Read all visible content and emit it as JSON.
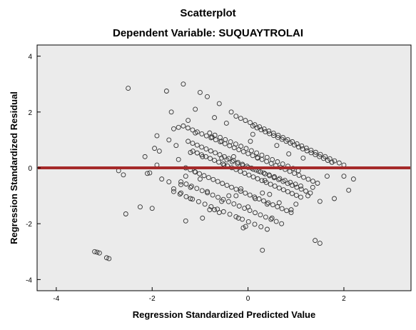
{
  "chart_data": {
    "type": "scatter",
    "title": "Scatterplot",
    "subtitle": "Dependent Variable: SUQUAYTROLAI",
    "xlabel": "Regression Standardized Predicted Value",
    "ylabel": "Regression Standardized Residual",
    "xlim": [
      -4.4,
      3.4
    ],
    "ylim": [
      -4.4,
      4.4
    ],
    "x_ticks": [
      -4,
      -2,
      0,
      2
    ],
    "y_ticks": [
      -4,
      -2,
      0,
      2,
      4
    ],
    "grid": false,
    "reference_line": {
      "y": 0,
      "color": "#a52a2a"
    },
    "colors": {
      "plot_background": "#ebebeb",
      "marker_stroke": "#333333",
      "axis": "#000000"
    },
    "points": [
      [
        -3.2,
        -3.0
      ],
      [
        -3.15,
        -3.02
      ],
      [
        -3.1,
        -3.05
      ],
      [
        -2.95,
        -3.22
      ],
      [
        -2.9,
        -3.25
      ],
      [
        -2.5,
        2.85
      ],
      [
        -2.6,
        -0.25
      ],
      [
        -2.55,
        -1.65
      ],
      [
        -2.7,
        -0.1
      ],
      [
        -2.15,
        0.4
      ],
      [
        -2.1,
        -0.2
      ],
      [
        -2.05,
        -0.18
      ],
      [
        -2.0,
        -1.45
      ],
      [
        -1.95,
        0.7
      ],
      [
        -1.9,
        1.15
      ],
      [
        -1.85,
        0.6
      ],
      [
        -1.8,
        -0.4
      ],
      [
        -1.7,
        2.75
      ],
      [
        -1.65,
        -0.5
      ],
      [
        -1.6,
        2.0
      ],
      [
        -1.55,
        1.4
      ],
      [
        -1.5,
        0.8
      ],
      [
        -1.45,
        0.3
      ],
      [
        -1.4,
        -0.9
      ],
      [
        -1.35,
        3.0
      ],
      [
        -1.3,
        -1.9
      ],
      [
        -1.25,
        1.7
      ],
      [
        -1.2,
        -0.7
      ],
      [
        -1.1,
        2.1
      ],
      [
        -1.0,
        2.7
      ],
      [
        -0.95,
        -1.8
      ],
      [
        -0.85,
        2.55
      ],
      [
        -0.8,
        -1.5
      ],
      [
        -0.7,
        1.8
      ],
      [
        -0.6,
        2.3
      ],
      [
        -0.55,
        -1.2
      ],
      [
        -0.45,
        1.6
      ],
      [
        -0.35,
        2.0
      ],
      [
        -0.25,
        -1.0
      ],
      [
        -0.2,
        -1.8
      ],
      [
        -0.1,
        -2.15
      ],
      [
        -0.05,
        -2.1
      ],
      [
        -0.7,
        -1.5
      ],
      [
        -0.6,
        -1.6
      ],
      [
        0.1,
        1.2
      ],
      [
        0.2,
        0.35
      ],
      [
        0.3,
        -0.9
      ],
      [
        0.4,
        -1.3
      ],
      [
        0.5,
        -1.8
      ],
      [
        0.3,
        -2.95
      ],
      [
        0.9,
        -1.5
      ],
      [
        1.0,
        -1.3
      ],
      [
        1.4,
        -2.6
      ],
      [
        1.5,
        -2.7
      ],
      [
        1.8,
        -1.1
      ],
      [
        2.0,
        -0.3
      ],
      [
        2.1,
        -0.8
      ],
      [
        2.2,
        -0.4
      ],
      [
        1.5,
        -1.2
      ],
      [
        1.25,
        -1.0
      ],
      [
        1.75,
        0.2
      ],
      [
        1.65,
        -0.3
      ],
      [
        -1.2,
        -1.1
      ],
      [
        -1.4,
        -0.6
      ],
      [
        -1.0,
        -0.4
      ],
      [
        -1.65,
        1.0
      ],
      [
        -1.9,
        0.1
      ],
      [
        -2.25,
        -1.4
      ],
      [
        -1.1,
        -0.15
      ],
      [
        -0.85,
        -0.85
      ],
      [
        -0.5,
        0.1
      ],
      [
        -0.3,
        0.4
      ],
      [
        0.0,
        -1.4
      ],
      [
        0.15,
        -1.1
      ],
      [
        -0.15,
        -0.75
      ],
      [
        0.45,
        -0.95
      ],
      [
        0.65,
        -1.25
      ],
      [
        -1.3,
        -0.3
      ],
      [
        -0.95,
        0.4
      ],
      [
        -0.4,
        -1.0
      ],
      [
        0.6,
        0.8
      ],
      [
        0.85,
        0.5
      ],
      [
        -1.55,
        -0.75
      ],
      [
        -1.2,
        0.55
      ],
      [
        -0.75,
        1.1
      ],
      [
        0.05,
        0.95
      ],
      [
        1.15,
        0.35
      ],
      [
        -1.45,
        1.45
      ],
      [
        -1.1,
        1.25
      ],
      [
        -0.55,
        0.95
      ],
      [
        0.35,
        -0.45
      ],
      [
        1.35,
        -0.7
      ]
    ],
    "point_bands": [
      {
        "x": [
          -1.35,
          1.45
        ],
        "y": [
          1.5,
          -0.55
        ],
        "n": 30
      },
      {
        "x": [
          -1.25,
          1.3
        ],
        "y": [
          0.95,
          -0.9
        ],
        "n": 28
      },
      {
        "x": [
          -1.15,
          1.1
        ],
        "y": [
          0.6,
          -1.05
        ],
        "n": 26
      },
      {
        "x": [
          -1.3,
          0.9
        ],
        "y": [
          0.0,
          -1.6
        ],
        "n": 24
      },
      {
        "x": [
          -1.4,
          0.7
        ],
        "y": [
          -0.5,
          -2.0
        ],
        "n": 20
      },
      {
        "x": [
          -1.55,
          0.4
        ],
        "y": [
          -0.85,
          -2.2
        ],
        "n": 16
      },
      {
        "x": [
          -0.25,
          2.0
        ],
        "y": [
          1.85,
          0.1
        ],
        "n": 24
      },
      {
        "x": [
          0.1,
          1.75
        ],
        "y": [
          1.5,
          0.2
        ],
        "n": 20
      },
      {
        "x": [
          -0.8,
          1.05
        ],
        "y": [
          1.25,
          -0.1
        ],
        "n": 18
      },
      {
        "x": [
          -0.55,
          1.1
        ],
        "y": [
          0.35,
          -0.65
        ],
        "n": 16
      }
    ]
  }
}
